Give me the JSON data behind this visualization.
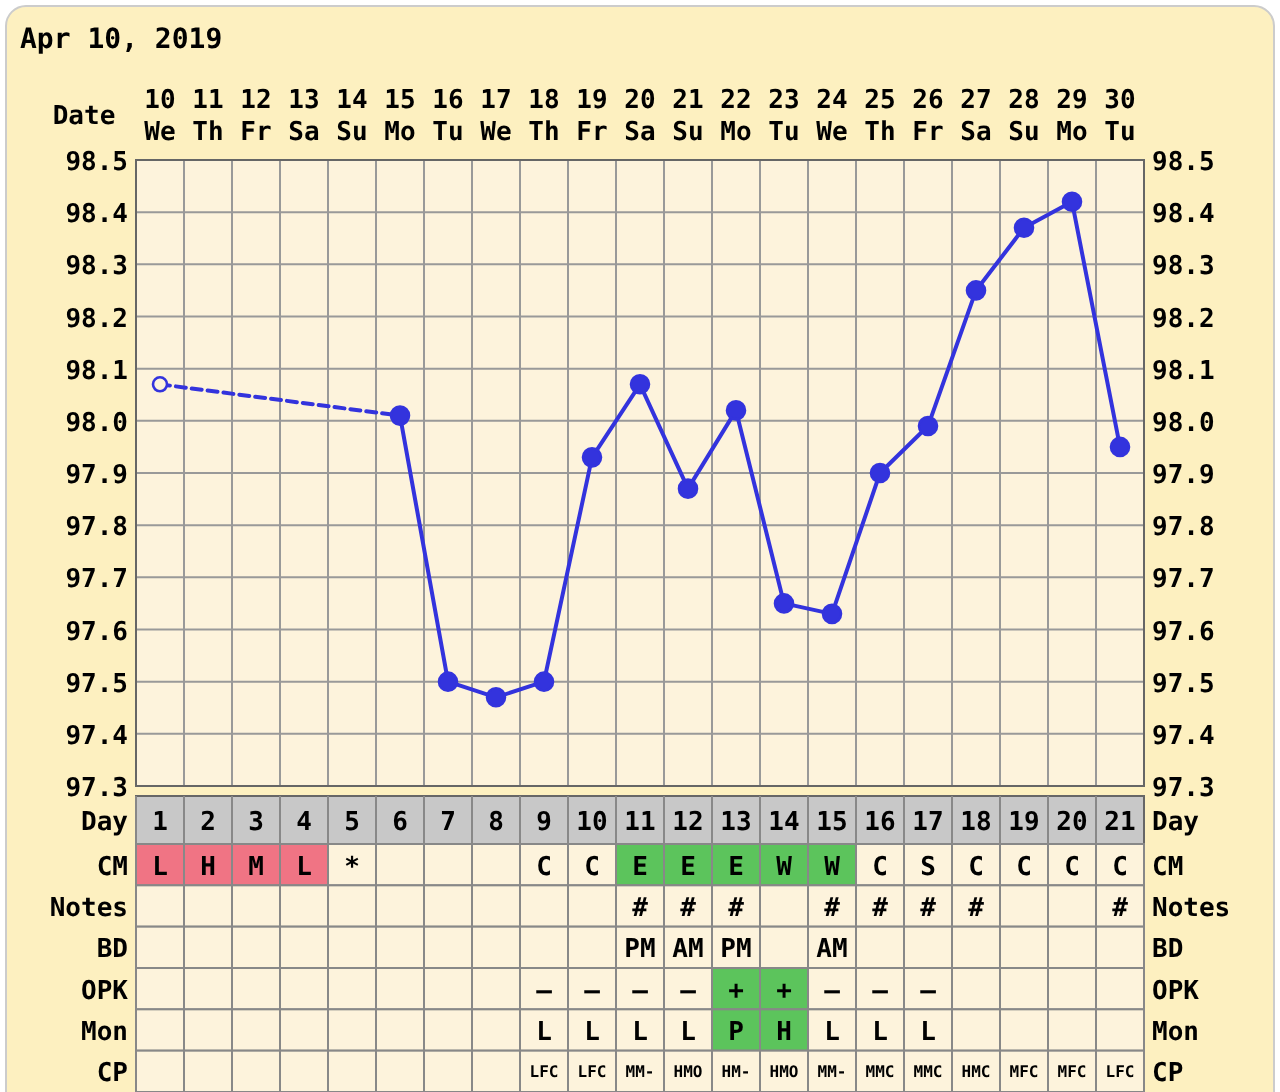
{
  "chart_data": [
    {
      "type": "line",
      "title": "Apr 10, 2019",
      "xlabel": "Date",
      "x2label": "Day",
      "x": [
        "2019-04-10",
        "2019-04-11",
        "2019-04-12",
        "2019-04-13",
        "2019-04-14",
        "2019-04-15",
        "2019-04-16",
        "2019-04-17",
        "2019-04-18",
        "2019-04-19",
        "2019-04-20",
        "2019-04-21",
        "2019-04-22",
        "2019-04-23",
        "2019-04-24",
        "2019-04-25",
        "2019-04-26",
        "2019-04-27",
        "2019-04-28",
        "2019-04-29",
        "2019-04-30"
      ],
      "xlim": [
        "2019-04-09T12:00",
        "2019-04-30T12:00"
      ],
      "xticks": [
        {
          "value": "2019-04-10",
          "label": "10 We"
        },
        {
          "value": "2019-04-11",
          "label": "11 Th"
        },
        {
          "value": "2019-04-12",
          "label": "12 Fr"
        },
        {
          "value": "2019-04-13",
          "label": "13 Sa"
        },
        {
          "value": "2019-04-14",
          "label": "14 Su"
        },
        {
          "value": "2019-04-15",
          "label": "15 Mo"
        },
        {
          "value": "2019-04-16",
          "label": "16 Tu"
        },
        {
          "value": "2019-04-17",
          "label": "17 We"
        },
        {
          "value": "2019-04-18",
          "label": "18 Th"
        },
        {
          "value": "2019-04-19",
          "label": "19 Fr"
        },
        {
          "value": "2019-04-20",
          "label": "20 Sa"
        },
        {
          "value": "2019-04-21",
          "label": "21 Su"
        },
        {
          "value": "2019-04-22",
          "label": "22 Mo"
        },
        {
          "value": "2019-04-23",
          "label": "23 Tu"
        },
        {
          "value": "2019-04-24",
          "label": "24 We"
        },
        {
          "value": "2019-04-25",
          "label": "25 Th"
        },
        {
          "value": "2019-04-26",
          "label": "26 Fr"
        },
        {
          "value": "2019-04-27",
          "label": "27 Sa"
        },
        {
          "value": "2019-04-28",
          "label": "28 Su"
        },
        {
          "value": "2019-04-29",
          "label": "29 Mo"
        },
        {
          "value": "2019-04-30",
          "label": "30 Tu"
        }
      ],
      "x2lim": [
        0.5,
        21.5
      ],
      "x2ticks": [
        1,
        2,
        3,
        4,
        5,
        6,
        7,
        8,
        9,
        10,
        11,
        12,
        13,
        14,
        15,
        16,
        17,
        18,
        19,
        20,
        21
      ],
      "series": [
        {
          "color": "#3333dd",
          "line_style": "dashed",
          "values": [
            98.07,
            null,
            null,
            null,
            null,
            98.01,
            null,
            null,
            null,
            null,
            null,
            null,
            null,
            null,
            null,
            null,
            null,
            null,
            null,
            null,
            null
          ]
        },
        {
          "color": "#3333dd",
          "line_style": "solid",
          "values": [
            null,
            null,
            null,
            null,
            null,
            98.01,
            97.5,
            97.47,
            97.5,
            97.93,
            98.07,
            97.87,
            98.02,
            97.65,
            97.63,
            97.9,
            97.99,
            98.25,
            98.37,
            98.42,
            97.95
          ]
        }
      ],
      "marker": "circle",
      "grid": true,
      "ylim": [
        97.3,
        98.5
      ],
      "yticks": [
        97.3,
        97.4,
        97.5,
        97.6,
        97.7,
        97.8,
        97.9,
        {
          "value": 98,
          "label": "98.0"
        },
        98.1,
        98.2,
        98.3,
        98.4,
        98.5
      ],
      "y2lim": [
        97.3,
        98.5
      ],
      "y2ticks": [
        97.3,
        97.4,
        97.5,
        97.6,
        97.7,
        97.8,
        97.9,
        {
          "value": 98,
          "label": "98.0"
        },
        98.1,
        98.2,
        98.3,
        98.4,
        98.5
      ]
    },
    {
      "type": "other",
      "y_categories": [
        "CM",
        "Notes",
        "BD",
        "OPK",
        "Mon",
        "CP"
      ],
      "y2_categories": [
        "CM",
        "Notes",
        "BD",
        "OPK",
        "Mon",
        "CP"
      ],
      "cell_labels": [
        [
          "L",
          "H",
          "M",
          "L",
          "*",
          null,
          null,
          null,
          "C",
          "C",
          "E",
          "E",
          "E",
          "W",
          "W",
          "C",
          "S",
          "C",
          "C",
          "C",
          "C"
        ],
        [
          null,
          null,
          null,
          null,
          null,
          null,
          null,
          null,
          null,
          null,
          "#",
          "#",
          "#",
          null,
          "#",
          "#",
          "#",
          "#",
          null,
          null,
          "#"
        ],
        [
          null,
          null,
          null,
          null,
          null,
          null,
          null,
          null,
          null,
          null,
          "PM",
          "AM",
          "PM",
          null,
          "AM",
          null,
          null,
          null,
          null,
          null,
          null
        ],
        [
          null,
          null,
          null,
          null,
          null,
          null,
          null,
          null,
          "–",
          "–",
          "–",
          "–",
          "+",
          "+",
          "–",
          "–",
          "–",
          null,
          null,
          null,
          null
        ],
        [
          null,
          null,
          null,
          null,
          null,
          null,
          null,
          null,
          "L",
          "L",
          "L",
          "L",
          "P",
          "H",
          "L",
          "L",
          "L",
          null,
          null,
          null,
          null
        ],
        [
          null,
          null,
          null,
          null,
          null,
          null,
          null,
          null,
          "LFC",
          "LFC",
          "MM-",
          "HMO",
          "HM-",
          "HMO",
          "MM-",
          "MMC",
          "MMC",
          "HMC",
          "MFC",
          "MFC",
          "LFC"
        ]
      ],
      "colors": [
        [
          "#f07484",
          "#f07484",
          "#f07484",
          "#f07484",
          null,
          null,
          null,
          null,
          null,
          null,
          "#5cc45c",
          "#5cc45c",
          "#5cc45c",
          "#5cc45c",
          "#5cc45c",
          null,
          null,
          null,
          null,
          null,
          null
        ],
        [
          null,
          null,
          null,
          null,
          null,
          null,
          null,
          null,
          null,
          null,
          null,
          null,
          null,
          null,
          null,
          null,
          null,
          null,
          null,
          null,
          null
        ],
        [
          null,
          null,
          null,
          null,
          null,
          null,
          null,
          null,
          null,
          null,
          null,
          null,
          null,
          null,
          null,
          null,
          null,
          null,
          null,
          null,
          null
        ],
        [
          null,
          null,
          null,
          null,
          null,
          null,
          null,
          null,
          null,
          null,
          null,
          null,
          "#5cc45c",
          "#5cc45c",
          null,
          null,
          null,
          null,
          null,
          null,
          null
        ],
        [
          null,
          null,
          null,
          null,
          null,
          null,
          null,
          null,
          null,
          null,
          null,
          null,
          "#5cc45c",
          "#5cc45c",
          null,
          null,
          null,
          null,
          null,
          null,
          null
        ],
        [
          null,
          null,
          null,
          null,
          null,
          null,
          null,
          null,
          null,
          null,
          null,
          null,
          null,
          null,
          null,
          null,
          null,
          null,
          null,
          null,
          null
        ]
      ]
    }
  ]
}
